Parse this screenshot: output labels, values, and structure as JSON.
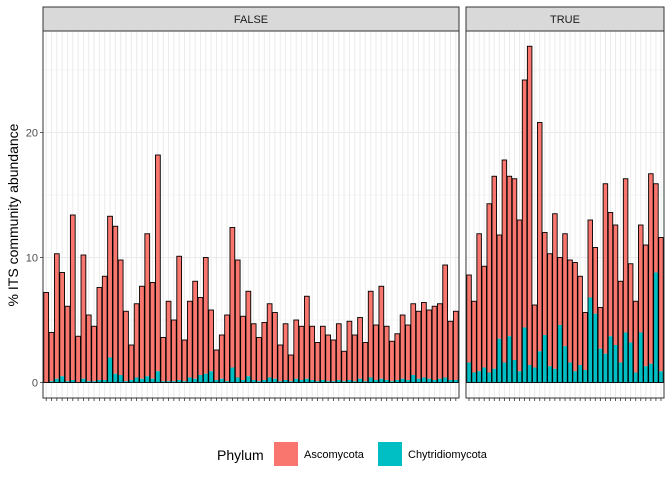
{
  "chart_data": {
    "type": "bar",
    "stacked": true,
    "facet_variable": "",
    "ylabel": "% ITS community abundance",
    "xlabel": "",
    "ylim": [
      0,
      28
    ],
    "yticks": [
      0,
      10,
      20
    ],
    "grid": true,
    "legend": {
      "title": "Phylum",
      "position": "bottom",
      "entries": [
        "Ascomycota",
        "Chytridiomycota"
      ]
    },
    "colors": {
      "Ascomycota": "#f8766d",
      "Chytridiomycota": "#00bfc4"
    },
    "panels": [
      {
        "label": "FALSE",
        "totals": [
          7.2,
          4.0,
          10.3,
          8.8,
          6.1,
          13.4,
          3.7,
          10.2,
          5.4,
          4.5,
          7.6,
          8.5,
          13.3,
          12.5,
          9.8,
          5.7,
          3.0,
          6.3,
          7.7,
          11.9,
          8.0,
          18.2,
          3.6,
          6.5,
          5.0,
          10.1,
          3.4,
          6.5,
          8.1,
          6.8,
          10.0,
          5.8,
          2.6,
          3.8,
          5.4,
          12.4,
          9.8,
          5.3,
          7.3,
          4.7,
          3.6,
          4.8,
          6.3,
          5.6,
          3.0,
          4.7,
          2.2,
          5.0,
          4.5,
          6.9,
          4.5,
          3.2,
          4.5,
          3.8,
          3.4,
          4.7,
          2.5,
          4.9,
          3.8,
          5.2,
          3.2,
          7.3,
          4.6,
          7.7,
          4.5,
          3.3,
          3.9,
          5.4,
          4.6,
          6.3,
          5.7,
          6.4,
          5.8,
          6.1,
          6.3,
          9.4,
          4.9,
          5.7
        ],
        "chytridiomycota": [
          0.0,
          0.1,
          0.3,
          0.5,
          0.1,
          0.2,
          0.0,
          0.3,
          0.1,
          0.1,
          0.2,
          0.2,
          2.0,
          0.7,
          0.6,
          0.1,
          0.2,
          0.4,
          0.3,
          0.5,
          0.3,
          0.9,
          0.1,
          0.1,
          0.1,
          0.2,
          0.1,
          0.4,
          0.3,
          0.6,
          0.7,
          0.9,
          0.2,
          0.3,
          0.1,
          1.2,
          0.4,
          0.2,
          0.5,
          0.2,
          0.1,
          0.2,
          0.4,
          0.3,
          0.1,
          0.2,
          0.1,
          0.3,
          0.2,
          0.3,
          0.2,
          0.1,
          0.2,
          0.1,
          0.1,
          0.2,
          0.1,
          0.2,
          0.1,
          0.3,
          0.1,
          0.4,
          0.2,
          0.3,
          0.2,
          0.1,
          0.2,
          0.3,
          0.2,
          0.6,
          0.3,
          0.4,
          0.3,
          0.2,
          0.3,
          0.4,
          0.2,
          0.2
        ]
      },
      {
        "label": "TRUE",
        "totals": [
          8.6,
          6.5,
          11.9,
          9.3,
          14.3,
          16.5,
          11.8,
          17.8,
          16.5,
          16.3,
          13.0,
          24.2,
          26.9,
          6.2,
          20.8,
          12.0,
          10.3,
          13.5,
          10.0,
          11.9,
          9.8,
          9.6,
          8.5,
          5.6,
          13.0,
          10.8,
          6.0,
          15.9,
          13.6,
          12.6,
          8.1,
          16.3,
          9.5,
          6.5,
          12.6,
          11.0,
          16.7,
          15.9,
          11.6
        ],
        "chytridiomycota": [
          1.6,
          0.8,
          0.9,
          1.2,
          0.8,
          1.1,
          3.5,
          1.6,
          3.7,
          1.8,
          0.9,
          4.4,
          1.4,
          1.2,
          2.5,
          3.8,
          1.3,
          1.1,
          4.6,
          2.9,
          1.6,
          0.9,
          1.4,
          1.0,
          6.8,
          5.5,
          2.7,
          2.3,
          3.7,
          3.0,
          1.6,
          4.0,
          3.2,
          0.8,
          4.0,
          1.3,
          1.5,
          8.8,
          0.9
        ]
      }
    ]
  }
}
